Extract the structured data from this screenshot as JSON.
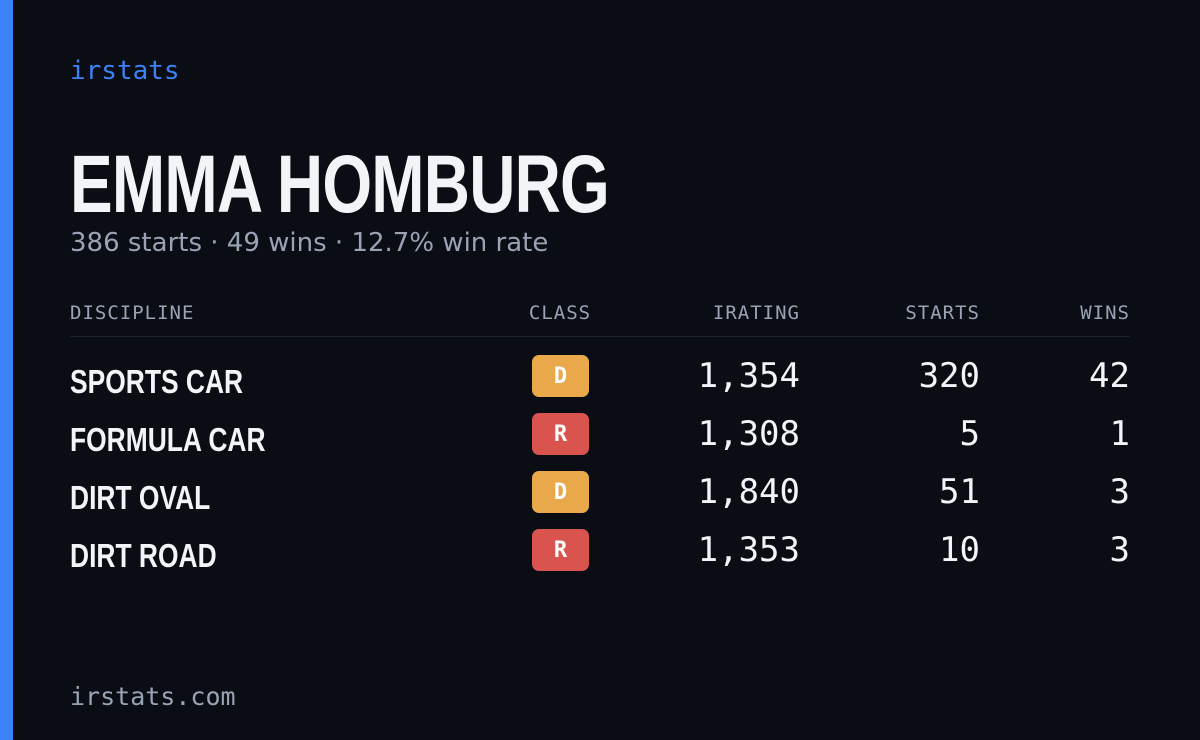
{
  "brand": "irstats",
  "name": "EMMA HOMBURG",
  "summary": "386 starts · 49 wins · 12.7% win rate",
  "table": {
    "headers": [
      "DISCIPLINE",
      "CLASS",
      "IRATING",
      "STARTS",
      "WINS"
    ],
    "rows": [
      {
        "discipline": "SPORTS CAR",
        "class": "D",
        "class_color": "#e9a94b",
        "irating": "1,354",
        "starts": "320",
        "wins": "42"
      },
      {
        "discipline": "FORMULA CAR",
        "class": "R",
        "class_color": "#d9534f",
        "irating": "1,308",
        "starts": "5",
        "wins": "1"
      },
      {
        "discipline": "DIRT OVAL",
        "class": "D",
        "class_color": "#e9a94b",
        "irating": "1,840",
        "starts": "51",
        "wins": "3"
      },
      {
        "discipline": "DIRT ROAD",
        "class": "R",
        "class_color": "#d9534f",
        "irating": "1,353",
        "starts": "10",
        "wins": "3"
      }
    ]
  },
  "footer": "irstats.com"
}
